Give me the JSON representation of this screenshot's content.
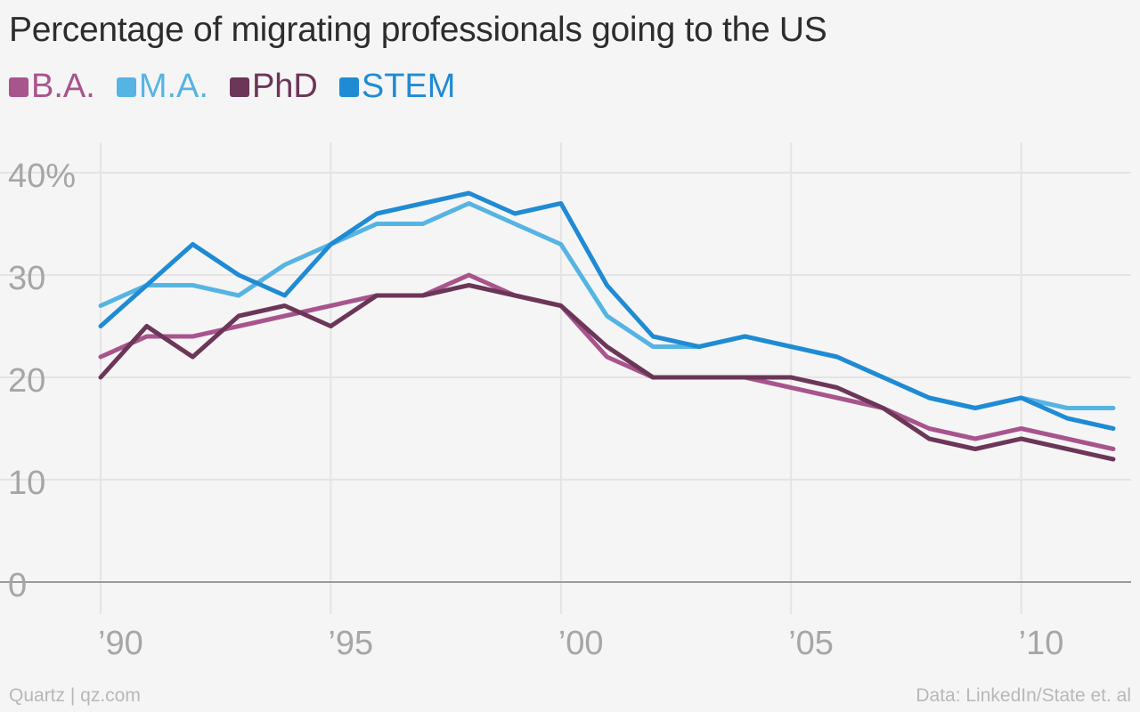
{
  "title": "Percentage of migrating professionals going to the US",
  "footer": {
    "credit": "Quartz | qz.com",
    "source": "Data: LinkedIn/State et. al"
  },
  "colors": {
    "ba": "#a8548d",
    "ma": "#56b4e3",
    "phd": "#6b3658",
    "stem": "#1f8bd4",
    "grid": "#e4e4e4",
    "axis": "#9a9a9a",
    "tick_text": "#a6a6a6"
  },
  "chart_data": {
    "type": "line",
    "title": "Percentage of migrating professionals going to the US",
    "xlabel": "",
    "ylabel": "",
    "xlim": [
      1990,
      2012
    ],
    "ylim": [
      0,
      40
    ],
    "y_ticks": [
      {
        "value": 0,
        "label": "0"
      },
      {
        "value": 10,
        "label": "10"
      },
      {
        "value": 20,
        "label": "20"
      },
      {
        "value": 30,
        "label": "30"
      },
      {
        "value": 40,
        "label": "40%"
      }
    ],
    "x_ticks": [
      {
        "value": 1990,
        "label": "’90"
      },
      {
        "value": 1995,
        "label": "’95"
      },
      {
        "value": 2000,
        "label": "’00"
      },
      {
        "value": 2005,
        "label": "’05"
      },
      {
        "value": 2010,
        "label": "’10"
      }
    ],
    "grid": true,
    "legend_position": "top-left",
    "x": [
      1990,
      1991,
      1992,
      1993,
      1994,
      1995,
      1996,
      1997,
      1998,
      1999,
      2000,
      2001,
      2002,
      2003,
      2004,
      2005,
      2006,
      2007,
      2008,
      2009,
      2010,
      2011,
      2012
    ],
    "series": [
      {
        "key": "ba",
        "name": "B.A.",
        "values": [
          22,
          24,
          24,
          25,
          26,
          27,
          28,
          28,
          30,
          28,
          27,
          22,
          20,
          20,
          20,
          19,
          18,
          17,
          15,
          14,
          15,
          14,
          13
        ]
      },
      {
        "key": "ma",
        "name": "M.A.",
        "values": [
          27,
          29,
          29,
          28,
          31,
          33,
          35,
          35,
          37,
          35,
          33,
          26,
          23,
          23,
          24,
          23,
          22,
          20,
          18,
          17,
          18,
          17,
          17
        ]
      },
      {
        "key": "phd",
        "name": "PhD",
        "values": [
          20,
          25,
          22,
          26,
          27,
          25,
          28,
          28,
          29,
          28,
          27,
          23,
          20,
          20,
          20,
          20,
          19,
          17,
          14,
          13,
          14,
          13,
          12
        ]
      },
      {
        "key": "stem",
        "name": "STEM",
        "values": [
          25,
          29,
          33,
          30,
          28,
          33,
          36,
          37,
          38,
          36,
          37,
          29,
          24,
          23,
          24,
          23,
          22,
          20,
          18,
          17,
          18,
          16,
          15
        ]
      }
    ]
  }
}
